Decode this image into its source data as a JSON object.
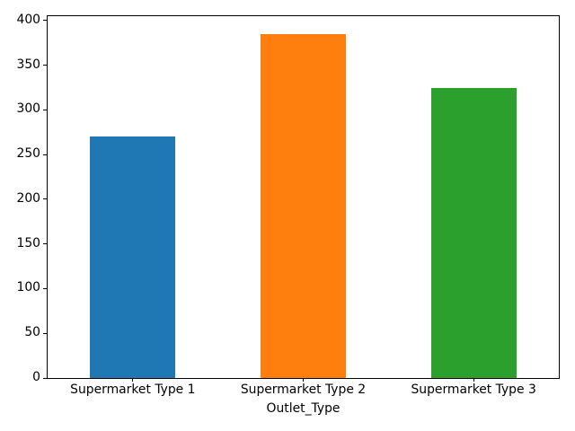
{
  "chart_data": {
    "type": "bar",
    "title": "",
    "xlabel": "Outlet_Type",
    "ylabel": "",
    "categories": [
      "Supermarket Type 1",
      "Supermarket Type 2",
      "Supermarket Type 3"
    ],
    "values": [
      270,
      385,
      325
    ],
    "bar_colors": [
      "#1f77b4",
      "#ff7f0e",
      "#2ca02c"
    ],
    "ylim": [
      0,
      405
    ],
    "yticks": [
      0,
      50,
      100,
      150,
      200,
      250,
      300,
      350,
      400
    ],
    "bar_width_fraction": 0.5,
    "grid": false,
    "legend_position": "none",
    "spine_color": "#000000",
    "background_color": "#ffffff"
  }
}
